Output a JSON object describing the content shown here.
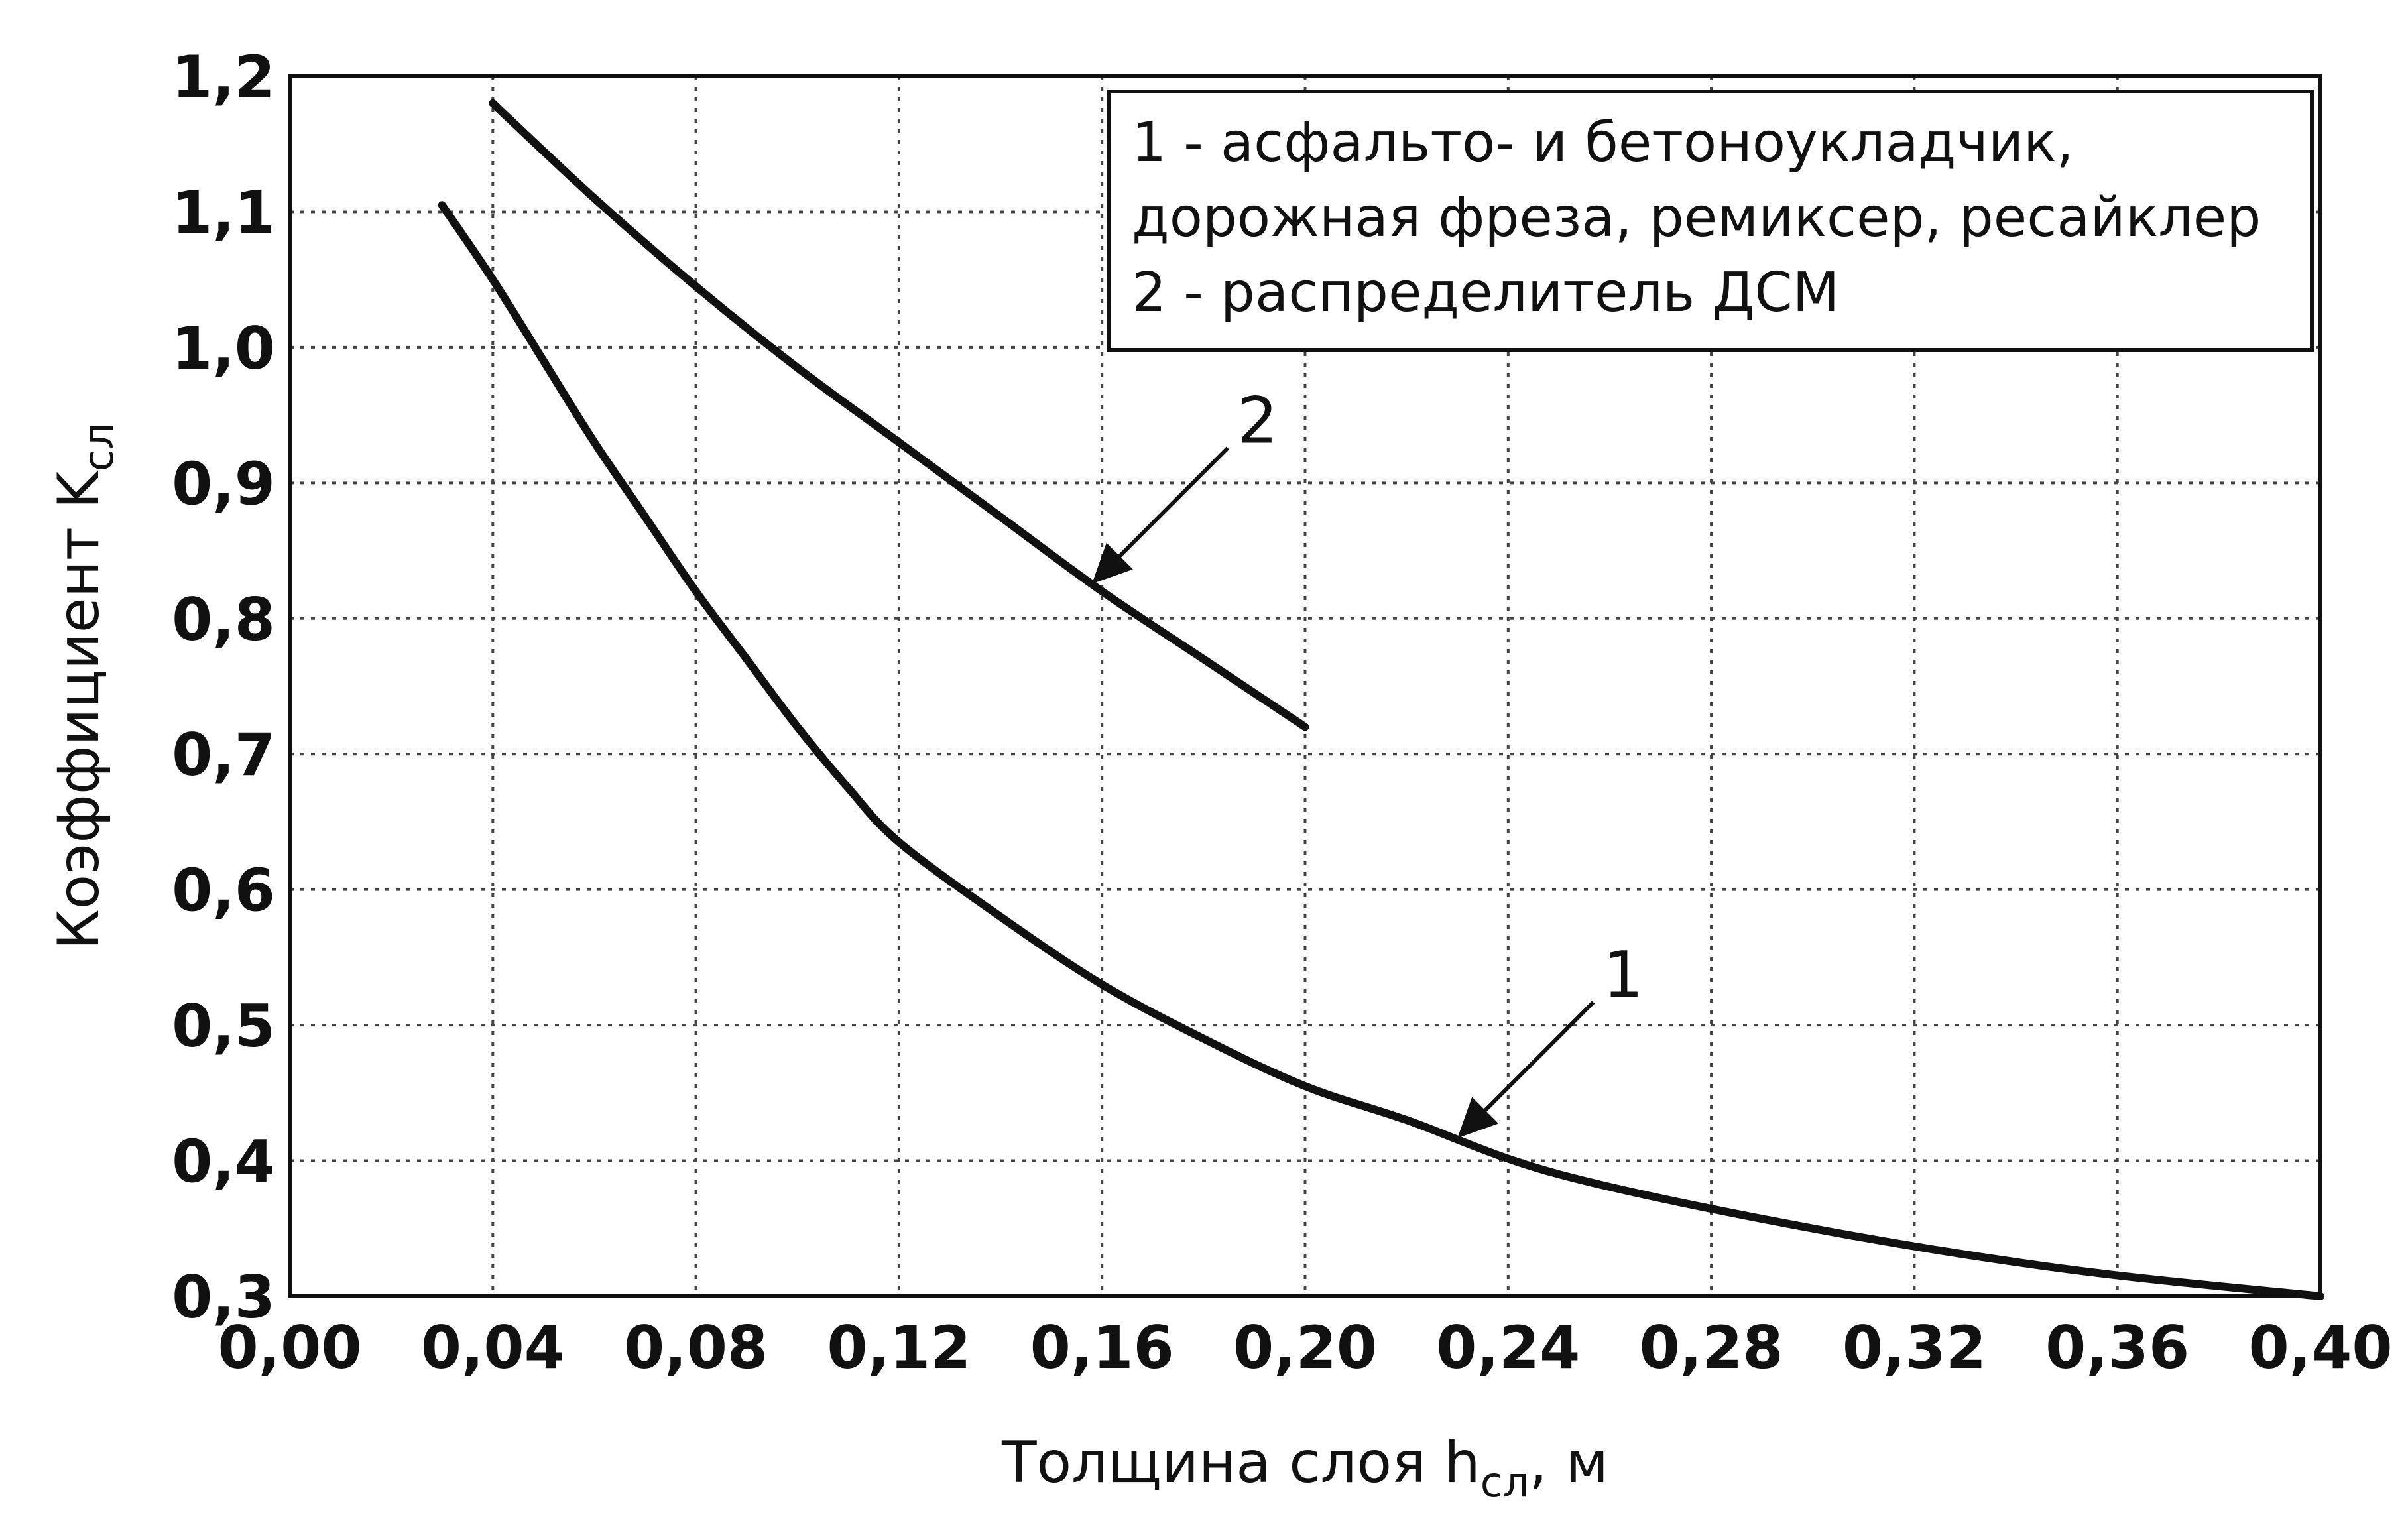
{
  "chart_data": {
    "type": "line",
    "xlabel": "Толщина слоя h",
    "xlabel_sub": "сл",
    "xlabel_suffix": ", м",
    "ylabel": "Коэффициент K",
    "ylabel_sub": "сл",
    "xlim": [
      0.0,
      0.4
    ],
    "ylim": [
      0.3,
      1.2
    ],
    "x_ticks": [
      0.0,
      0.04,
      0.08,
      0.12,
      0.16,
      0.2,
      0.24,
      0.28,
      0.32,
      0.36,
      0.4
    ],
    "x_tick_labels": [
      "0,00",
      "0,04",
      "0,08",
      "0,12",
      "0,16",
      "0,20",
      "0,24",
      "0,28",
      "0,32",
      "0,36",
      "0,40"
    ],
    "y_ticks": [
      0.3,
      0.4,
      0.5,
      0.6,
      0.7,
      0.8,
      0.9,
      1.0,
      1.1,
      1.2
    ],
    "y_tick_labels": [
      "0,3",
      "0,4",
      "0,5",
      "0,6",
      "0,7",
      "0,8",
      "0,9",
      "1,0",
      "1,1",
      "1,2"
    ],
    "grid": true,
    "legend_position": "top-right",
    "legend_lines": [
      "1 - асфальто- и бетоноукладчик,",
      "дорожная фреза, ремиксер, ресайклер",
      "2 - распределитель ДСМ"
    ],
    "series": [
      {
        "label": "1",
        "x": [
          0.03,
          0.04,
          0.05,
          0.06,
          0.07,
          0.08,
          0.09,
          0.1,
          0.11,
          0.12,
          0.14,
          0.16,
          0.18,
          0.2,
          0.22,
          0.25,
          0.3,
          0.35,
          0.4
        ],
        "y": [
          1.105,
          1.05,
          0.99,
          0.93,
          0.875,
          0.82,
          0.77,
          0.72,
          0.675,
          0.635,
          0.58,
          0.53,
          0.49,
          0.455,
          0.43,
          0.39,
          0.35,
          0.32,
          0.3
        ],
        "callout_at": 0.23
      },
      {
        "label": "2",
        "x": [
          0.04,
          0.06,
          0.08,
          0.1,
          0.12,
          0.14,
          0.16,
          0.18,
          0.2
        ],
        "y": [
          1.18,
          1.11,
          1.045,
          0.985,
          0.93,
          0.875,
          0.82,
          0.77,
          0.72
        ],
        "callout_at": 0.158
      }
    ]
  }
}
